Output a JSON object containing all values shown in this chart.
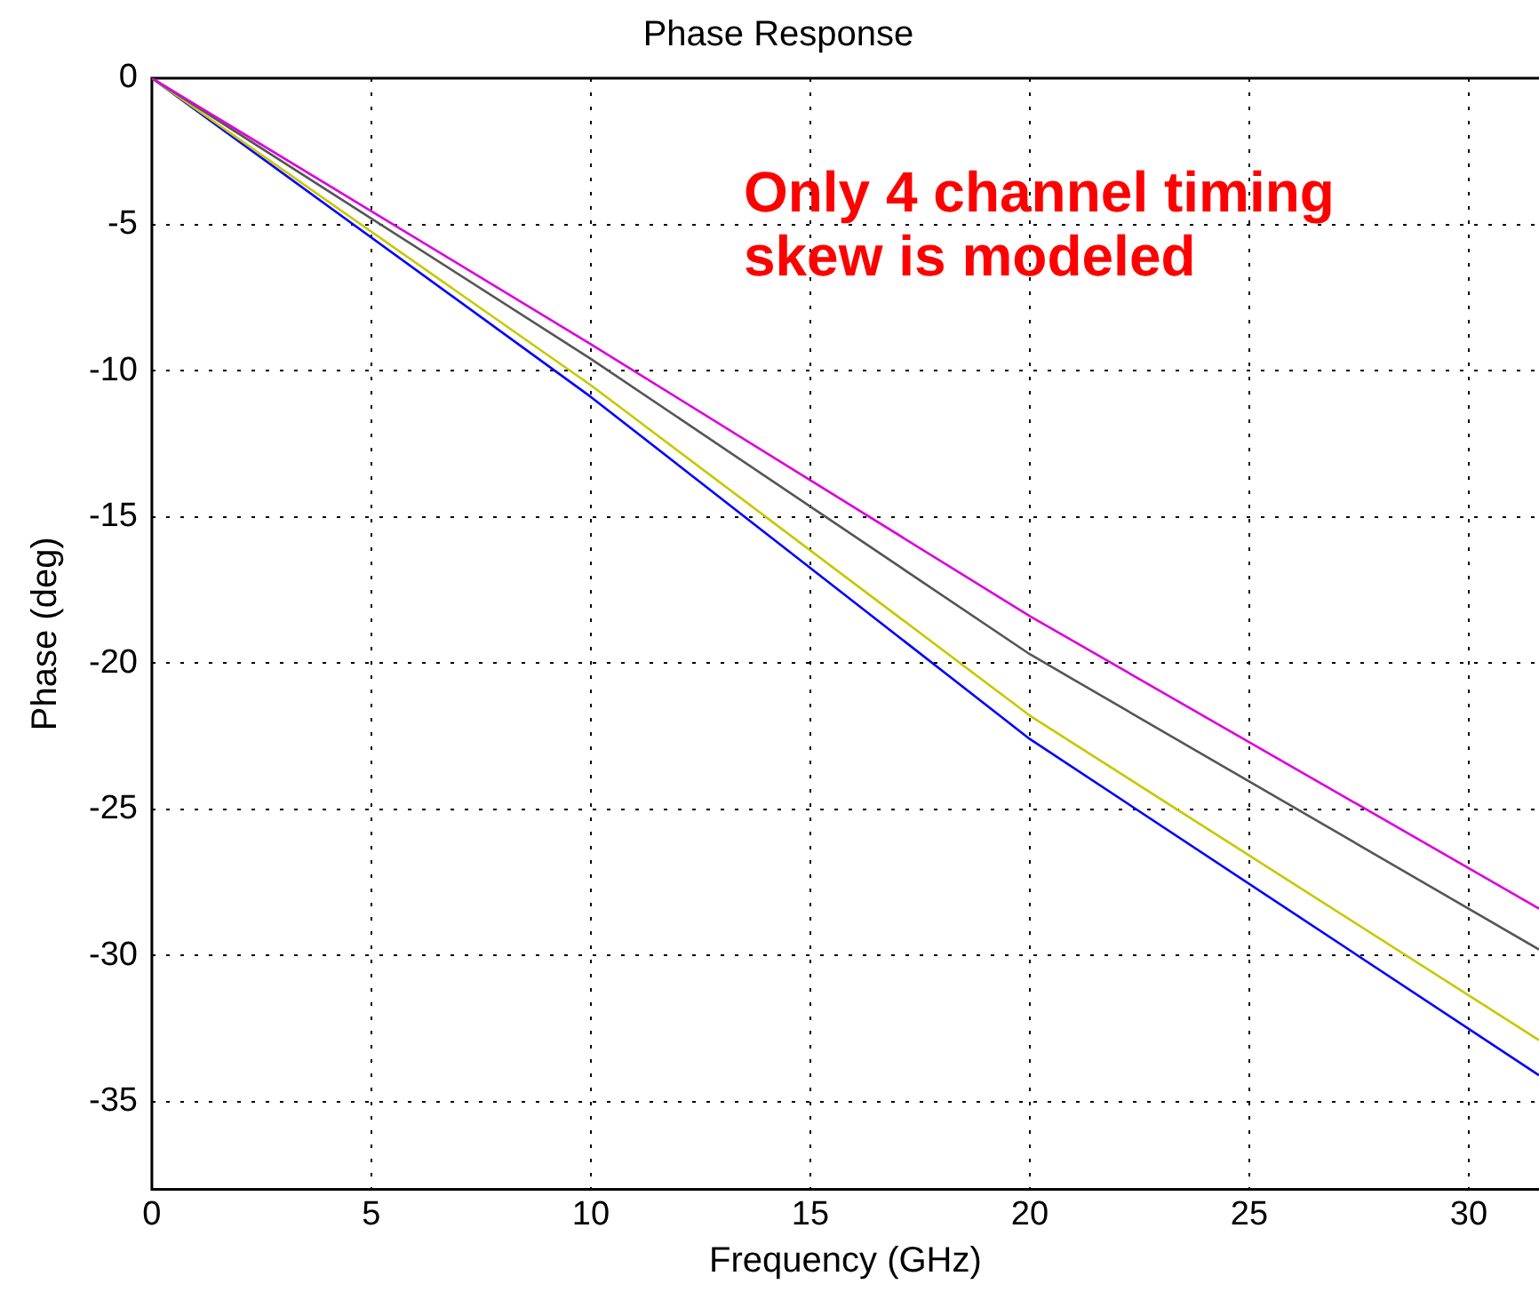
{
  "chart_data": {
    "type": "line",
    "title": "Phase Response",
    "xlabel": "Frequency (GHz)",
    "ylabel": "Phase (deg)",
    "x": [
      0,
      10,
      20,
      31.6
    ],
    "series": [
      {
        "color": "#dd00dd",
        "values": [
          0,
          -9.1,
          -18.4,
          -28.4
        ]
      },
      {
        "color": "#555555",
        "values": [
          0,
          -9.6,
          -19.7,
          -29.8
        ]
      },
      {
        "color": "#c8c800",
        "values": [
          0,
          -10.5,
          -21.8,
          -32.9
        ]
      },
      {
        "color": "#0000ff",
        "values": [
          0,
          -10.9,
          -22.6,
          -34.1
        ]
      }
    ],
    "xlim": [
      0,
      31.6
    ],
    "xticks": [
      0,
      5,
      10,
      15,
      20,
      25,
      30
    ],
    "ylim": [
      -38,
      0
    ],
    "yticks": [
      -35,
      -30,
      -25,
      -20,
      -15,
      -10,
      -5,
      0
    ],
    "grid": true,
    "legend": false,
    "marker": "none",
    "line_style": "solid",
    "annotations": [
      "Only 4 channel timing skew is modeled"
    ]
  }
}
